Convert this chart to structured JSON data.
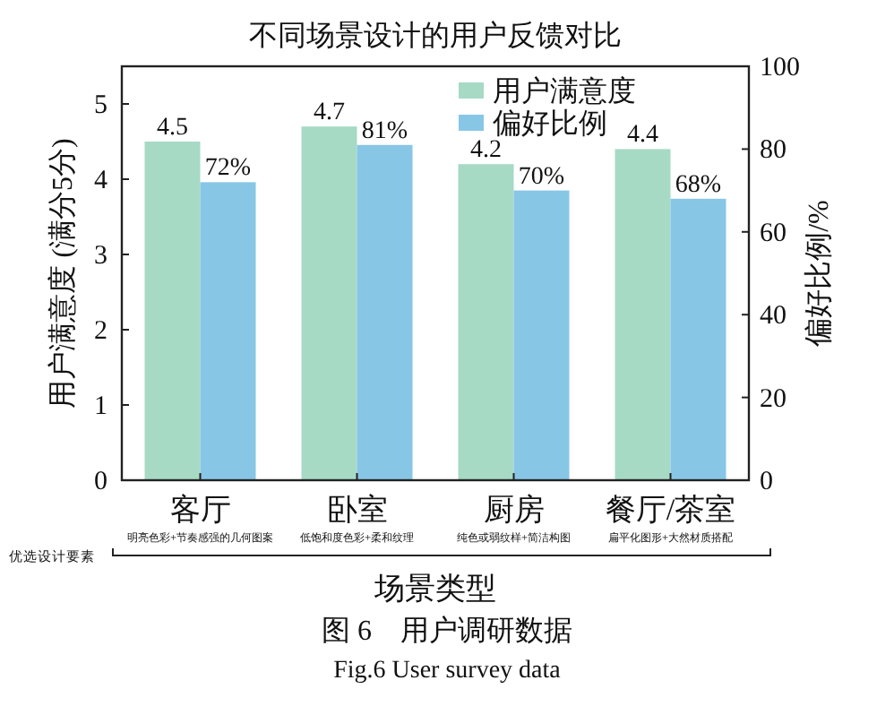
{
  "chart_data": {
    "type": "bar",
    "title": "不同场景设计的用户反馈对比",
    "xlabel": "场景类型",
    "ylabel": "用户满意度 (满分5分)",
    "y2label": "偏好比例/%",
    "categories": [
      "客厅",
      "卧室",
      "厨房",
      "餐厅/茶室"
    ],
    "series": [
      {
        "name": "用户满意度",
        "color": "#a6dac5",
        "values": [
          4.5,
          4.7,
          4.2,
          4.4
        ],
        "value_labels": [
          "4.5",
          "4.7",
          "4.2",
          "4.4"
        ]
      },
      {
        "name": "偏好比例",
        "color": "#88c6e6",
        "values": [
          72,
          81,
          70,
          68
        ],
        "axis": "y2",
        "value_labels": [
          "72%",
          "81%",
          "70%",
          "68%"
        ]
      }
    ],
    "ylim": [
      0,
      5.5
    ],
    "yticks": [
      0,
      1,
      2,
      3,
      4,
      5
    ],
    "y2lim": [
      0,
      100
    ],
    "y2ticks": [
      0,
      20,
      40,
      60,
      80,
      100
    ],
    "legend": "top right",
    "grid": false,
    "annotations": [
      "明亮色彩+节奏感强的几何图案",
      "低饱和度色彩+柔和纹理",
      "纯色或弱纹样+简洁构图",
      "扁平化图形+大然材质搭配",
      "优选设计要素",
      "图 6　用户调研数据",
      "Fig.6 User survey data"
    ]
  }
}
